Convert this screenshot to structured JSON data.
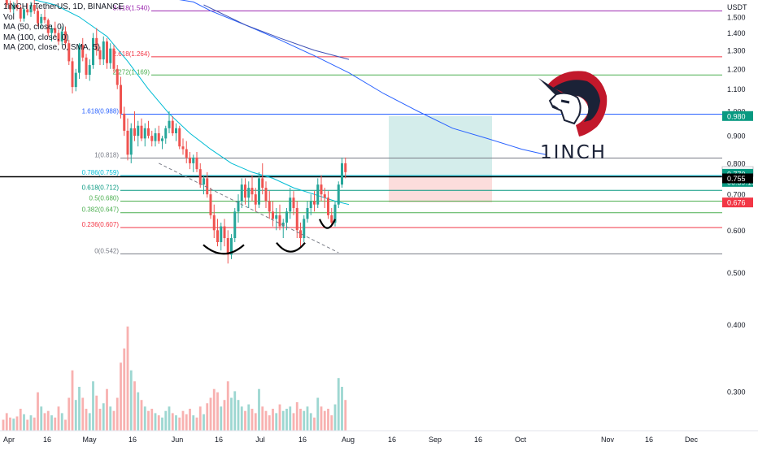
{
  "header": {
    "symbol_line": "1INCH / TetherUS, 1D, BINANCE",
    "indicators": [
      "Vol",
      "MA (50, close, 0)",
      "MA (100, close, 0)",
      "MA (200, close, 0, SMA, 5)"
    ]
  },
  "logo": {
    "text": "1INCH"
  },
  "axis": {
    "currency": "USDT"
  },
  "colors": {
    "up": "#26a69a",
    "down": "#ef5350",
    "ma_blue": "#2962ff",
    "ma_cyan": "#00bcd4",
    "price_label": "#089981",
    "sell_label": "#f23645",
    "current_label": "#000000"
  },
  "chart_data": {
    "type": "candlestick",
    "title": "1INCH / TetherUS, 1D, BINANCE",
    "y_scale": "log",
    "ylim": [
      0.27,
      1.58
    ],
    "y_ticks": [
      "1.500",
      "1.400",
      "1.300",
      "1.200",
      "1.100",
      "1.000",
      "0.900",
      "0.800",
      "0.700",
      "0.600",
      "0.500",
      "0.400",
      "0.300"
    ],
    "x_ticks": [
      "Apr",
      "16",
      "May",
      "16",
      "Jun",
      "16",
      "Jul",
      "16",
      "Aug",
      "16",
      "Sep",
      "16",
      "Oct",
      "Nov",
      "16",
      "Dec"
    ],
    "fib_levels": [
      {
        "label": "3.618(1.540)",
        "value": 1.54
      },
      {
        "label": "2.618(1.264)",
        "value": 1.264
      },
      {
        "label": "2.272(1.169)",
        "value": 1.169
      },
      {
        "label": "1.618(0.988)",
        "value": 0.988
      },
      {
        "label": "1(0.818)",
        "value": 0.818
      },
      {
        "label": "0.786(0.759)",
        "value": 0.759
      },
      {
        "label": "0.618(0.712)",
        "value": 0.712
      },
      {
        "label": "0.5(0.680)",
        "value": 0.68
      },
      {
        "label": "0.382(0.647)",
        "value": 0.647
      },
      {
        "label": "0.236(0.607)",
        "value": 0.607
      },
      {
        "label": "0(0.542)",
        "value": 0.542
      }
    ],
    "price_labels": [
      {
        "text": "0.980",
        "value": 0.98,
        "kind": "target"
      },
      {
        "text": "0.772",
        "value": 0.772,
        "kind": "plain"
      },
      {
        "text": "0.770",
        "value": 0.77,
        "kind": "current"
      },
      {
        "text": "06:39:19",
        "value": 0.758,
        "kind": "countdown"
      },
      {
        "text": "0.755",
        "value": 0.755,
        "kind": "black"
      },
      {
        "text": "0.676",
        "value": 0.676,
        "kind": "stop"
      }
    ],
    "position": {
      "entry": 0.757,
      "target": 0.98,
      "stop": 0.676
    },
    "candles": [
      [
        1.68,
        1.7,
        1.62,
        1.64
      ],
      [
        1.64,
        1.66,
        1.56,
        1.58
      ],
      [
        1.58,
        1.61,
        1.53,
        1.55
      ],
      [
        1.55,
        1.6,
        1.52,
        1.58
      ],
      [
        1.58,
        1.62,
        1.54,
        1.56
      ],
      [
        1.56,
        1.58,
        1.47,
        1.49
      ],
      [
        1.49,
        1.56,
        1.47,
        1.55
      ],
      [
        1.55,
        1.59,
        1.51,
        1.53
      ],
      [
        1.53,
        1.6,
        1.5,
        1.58
      ],
      [
        1.58,
        1.62,
        1.52,
        1.54
      ],
      [
        1.54,
        1.56,
        1.44,
        1.46
      ],
      [
        1.46,
        1.52,
        1.43,
        1.5
      ],
      [
        1.5,
        1.55,
        1.46,
        1.48
      ],
      [
        1.48,
        1.49,
        1.38,
        1.4
      ],
      [
        1.4,
        1.45,
        1.35,
        1.43
      ],
      [
        1.43,
        1.47,
        1.38,
        1.4
      ],
      [
        1.4,
        1.42,
        1.33,
        1.35
      ],
      [
        1.35,
        1.44,
        1.33,
        1.41
      ],
      [
        1.41,
        1.44,
        1.32,
        1.34
      ],
      [
        1.34,
        1.36,
        1.22,
        1.24
      ],
      [
        1.24,
        1.26,
        1.08,
        1.11
      ],
      [
        1.11,
        1.2,
        1.09,
        1.18
      ],
      [
        1.18,
        1.34,
        1.15,
        1.33
      ],
      [
        1.33,
        1.37,
        1.24,
        1.26
      ],
      [
        1.26,
        1.28,
        1.15,
        1.17
      ],
      [
        1.17,
        1.25,
        1.14,
        1.22
      ],
      [
        1.22,
        1.4,
        1.2,
        1.37
      ],
      [
        1.37,
        1.43,
        1.27,
        1.3
      ],
      [
        1.3,
        1.32,
        1.22,
        1.25
      ],
      [
        1.25,
        1.38,
        1.22,
        1.35
      ],
      [
        1.35,
        1.37,
        1.2,
        1.23
      ],
      [
        1.23,
        1.34,
        1.2,
        1.31
      ],
      [
        1.31,
        1.33,
        1.18,
        1.2
      ],
      [
        1.2,
        1.22,
        1.1,
        1.12
      ],
      [
        1.12,
        1.16,
        0.97,
        0.99
      ],
      [
        0.99,
        1.02,
        0.9,
        0.92
      ],
      [
        0.92,
        0.97,
        0.81,
        0.83
      ],
      [
        0.83,
        0.95,
        0.8,
        0.93
      ],
      [
        0.93,
        1.0,
        0.88,
        0.9
      ],
      [
        0.9,
        0.96,
        0.86,
        0.94
      ],
      [
        0.94,
        0.97,
        0.88,
        0.89
      ],
      [
        0.89,
        0.95,
        0.86,
        0.93
      ],
      [
        0.93,
        0.96,
        0.89,
        0.9
      ],
      [
        0.9,
        0.92,
        0.86,
        0.88
      ],
      [
        0.88,
        0.93,
        0.86,
        0.91
      ],
      [
        0.91,
        0.94,
        0.87,
        0.88
      ],
      [
        0.88,
        0.9,
        0.85,
        0.89
      ],
      [
        0.89,
        0.94,
        0.87,
        0.93
      ],
      [
        0.93,
        1.0,
        0.91,
        0.96
      ],
      [
        0.96,
        0.98,
        0.9,
        0.91
      ],
      [
        0.91,
        0.95,
        0.88,
        0.93
      ],
      [
        0.93,
        0.94,
        0.85,
        0.86
      ],
      [
        0.86,
        0.89,
        0.83,
        0.85
      ],
      [
        0.85,
        0.88,
        0.8,
        0.82
      ],
      [
        0.82,
        0.84,
        0.78,
        0.8
      ],
      [
        0.8,
        0.83,
        0.77,
        0.82
      ],
      [
        0.82,
        0.84,
        0.77,
        0.78
      ],
      [
        0.78,
        0.8,
        0.72,
        0.73
      ],
      [
        0.73,
        0.76,
        0.7,
        0.75
      ],
      [
        0.75,
        0.77,
        0.69,
        0.7
      ],
      [
        0.7,
        0.72,
        0.63,
        0.64
      ],
      [
        0.64,
        0.67,
        0.58,
        0.6
      ],
      [
        0.6,
        0.63,
        0.56,
        0.57
      ],
      [
        0.57,
        0.62,
        0.55,
        0.61
      ],
      [
        0.61,
        0.63,
        0.56,
        0.58
      ],
      [
        0.58,
        0.6,
        0.52,
        0.54
      ],
      [
        0.54,
        0.59,
        0.53,
        0.58
      ],
      [
        0.58,
        0.66,
        0.57,
        0.65
      ],
      [
        0.65,
        0.7,
        0.62,
        0.68
      ],
      [
        0.68,
        0.75,
        0.66,
        0.73
      ],
      [
        0.73,
        0.75,
        0.67,
        0.69
      ],
      [
        0.69,
        0.74,
        0.66,
        0.72
      ],
      [
        0.72,
        0.76,
        0.68,
        0.7
      ],
      [
        0.7,
        0.72,
        0.65,
        0.67
      ],
      [
        0.67,
        0.77,
        0.66,
        0.75
      ],
      [
        0.75,
        0.8,
        0.7,
        0.72
      ],
      [
        0.72,
        0.74,
        0.66,
        0.68
      ],
      [
        0.68,
        0.71,
        0.63,
        0.65
      ],
      [
        0.65,
        0.68,
        0.61,
        0.63
      ],
      [
        0.63,
        0.66,
        0.6,
        0.64
      ],
      [
        0.64,
        0.67,
        0.6,
        0.61
      ],
      [
        0.61,
        0.63,
        0.58,
        0.62
      ],
      [
        0.62,
        0.66,
        0.6,
        0.65
      ],
      [
        0.65,
        0.72,
        0.63,
        0.69
      ],
      [
        0.69,
        0.71,
        0.64,
        0.66
      ],
      [
        0.66,
        0.68,
        0.58,
        0.6
      ],
      [
        0.6,
        0.62,
        0.56,
        0.58
      ],
      [
        0.58,
        0.64,
        0.57,
        0.63
      ],
      [
        0.63,
        0.68,
        0.62,
        0.66
      ],
      [
        0.66,
        0.7,
        0.64,
        0.68
      ],
      [
        0.68,
        0.71,
        0.65,
        0.67
      ],
      [
        0.67,
        0.75,
        0.66,
        0.73
      ],
      [
        0.73,
        0.76,
        0.68,
        0.7
      ],
      [
        0.7,
        0.72,
        0.66,
        0.69
      ],
      [
        0.69,
        0.71,
        0.63,
        0.64
      ],
      [
        0.64,
        0.66,
        0.61,
        0.62
      ],
      [
        0.62,
        0.68,
        0.61,
        0.67
      ],
      [
        0.67,
        0.74,
        0.66,
        0.73
      ],
      [
        0.73,
        0.82,
        0.72,
        0.8
      ],
      [
        0.8,
        0.82,
        0.75,
        0.77
      ]
    ],
    "volumes": [
      0.1,
      0.16,
      0.12,
      0.11,
      0.13,
      0.2,
      0.15,
      0.1,
      0.14,
      0.12,
      0.35,
      0.22,
      0.16,
      0.18,
      0.14,
      0.12,
      0.22,
      0.16,
      0.1,
      0.3,
      0.55,
      0.28,
      0.4,
      0.3,
      0.2,
      0.16,
      0.45,
      0.32,
      0.2,
      0.25,
      0.38,
      0.22,
      0.18,
      0.3,
      0.62,
      0.75,
      0.95,
      0.55,
      0.45,
      0.35,
      0.28,
      0.22,
      0.18,
      0.2,
      0.16,
      0.14,
      0.12,
      0.18,
      0.22,
      0.16,
      0.14,
      0.12,
      0.18,
      0.15,
      0.2,
      0.14,
      0.12,
      0.22,
      0.15,
      0.25,
      0.3,
      0.38,
      0.35,
      0.22,
      0.28,
      0.45,
      0.3,
      0.36,
      0.28,
      0.22,
      0.18,
      0.24,
      0.2,
      0.16,
      0.38,
      0.22,
      0.18,
      0.14,
      0.2,
      0.16,
      0.24,
      0.18,
      0.2,
      0.22,
      0.16,
      0.26,
      0.2,
      0.18,
      0.22,
      0.16,
      0.12,
      0.3,
      0.22,
      0.18,
      0.2,
      0.14,
      0.24,
      0.48,
      0.4,
      0.28
    ],
    "ma_blue": [
      [
        20,
        1.7
      ],
      [
        40,
        1.66
      ],
      [
        55,
        1.6
      ],
      [
        60,
        1.54
      ],
      [
        70,
        1.45
      ],
      [
        80,
        1.36
      ],
      [
        90,
        1.27
      ],
      [
        100,
        1.18
      ],
      [
        110,
        1.08
      ],
      [
        120,
        1.0
      ],
      [
        130,
        0.93
      ],
      [
        140,
        0.89
      ],
      [
        150,
        0.85
      ],
      [
        157,
        0.83
      ]
    ],
    "ma_cyan": [
      [
        0,
        1.62
      ],
      [
        8,
        1.62
      ],
      [
        15,
        1.58
      ],
      [
        22,
        1.5
      ],
      [
        30,
        1.38
      ],
      [
        36,
        1.24
      ],
      [
        42,
        1.1
      ],
      [
        48,
        0.99
      ],
      [
        54,
        0.91
      ],
      [
        60,
        0.85
      ],
      [
        66,
        0.8
      ],
      [
        72,
        0.77
      ],
      [
        78,
        0.75
      ],
      [
        84,
        0.72
      ],
      [
        90,
        0.7
      ],
      [
        96,
        0.68
      ],
      [
        100,
        0.67
      ]
    ],
    "ma_200": [
      [
        58,
        1.58
      ],
      [
        70,
        1.45
      ],
      [
        80,
        1.37
      ],
      [
        90,
        1.3
      ],
      [
        100,
        1.25
      ]
    ],
    "x_slots": 190
  }
}
